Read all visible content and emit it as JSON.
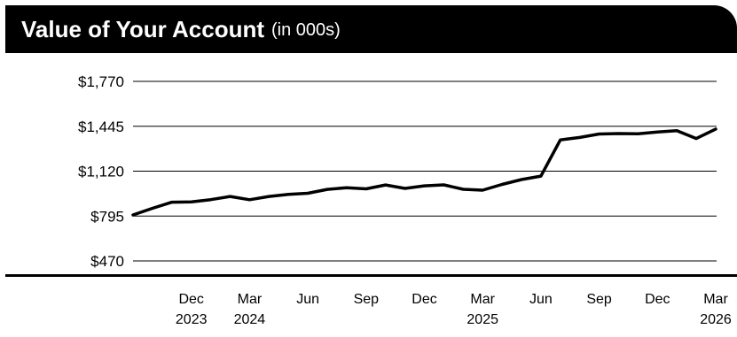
{
  "title": {
    "main": "Value of Your Account",
    "sub": "(in 000s)"
  },
  "colors": {
    "title_bar": "#000000",
    "title_text": "#ffffff",
    "line": "#000000",
    "grid": "#000000"
  },
  "chart_data": {
    "type": "line",
    "title": "Value of Your Account (in 000s)",
    "xlabel": "",
    "ylabel": "",
    "ylim": [
      470,
      1770
    ],
    "y_ticks": [
      {
        "value": 470,
        "label": "$470"
      },
      {
        "value": 795,
        "label": "$795"
      },
      {
        "value": 1120,
        "label": "$1,120"
      },
      {
        "value": 1445,
        "label": "$1,445"
      },
      {
        "value": 1770,
        "label": "$1,770"
      }
    ],
    "x_ticks": [
      {
        "i": 3,
        "month": "Dec",
        "year": "2023"
      },
      {
        "i": 6,
        "month": "Mar",
        "year": "2024"
      },
      {
        "i": 9,
        "month": "Jun",
        "year": ""
      },
      {
        "i": 12,
        "month": "Sep",
        "year": ""
      },
      {
        "i": 15,
        "month": "Dec",
        "year": ""
      },
      {
        "i": 18,
        "month": "Mar",
        "year": "2025"
      },
      {
        "i": 21,
        "month": "Jun",
        "year": ""
      },
      {
        "i": 24,
        "month": "Sep",
        "year": ""
      },
      {
        "i": 27,
        "month": "Dec",
        "year": ""
      },
      {
        "i": 30,
        "month": "Mar",
        "year": "2026"
      }
    ],
    "grid": true,
    "legend": "none",
    "series": [
      {
        "values": [
          803,
          851,
          895,
          898,
          914,
          937,
          913,
          937,
          952,
          960,
          988,
          1000,
          992,
          1020,
          995,
          1014,
          1021,
          989,
          982,
          1024,
          1059,
          1084,
          1346,
          1364,
          1389,
          1392,
          1391,
          1404,
          1413,
          1356,
          1425
        ]
      }
    ]
  }
}
